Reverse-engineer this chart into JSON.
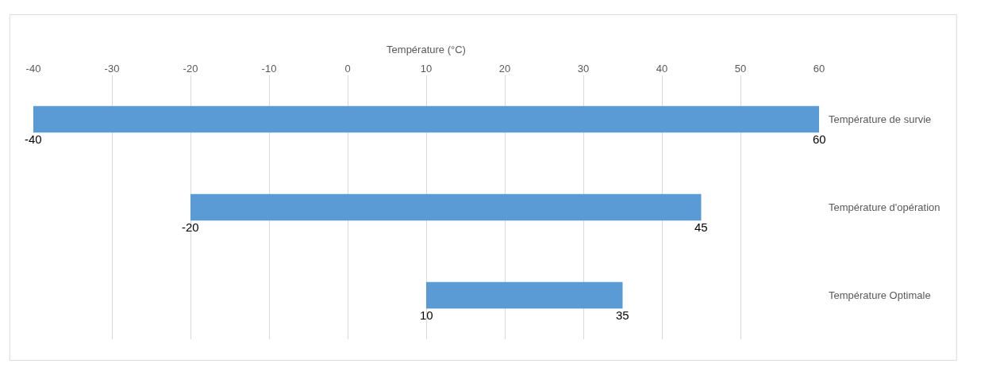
{
  "chart_data": {
    "type": "bar",
    "orientation": "horizontal",
    "xlabel": "Température (°C)",
    "categories": [
      "Température de survie",
      "Température d'opération",
      "Température Optimale"
    ],
    "base": [
      -40,
      -20,
      10
    ],
    "values": [
      100,
      65,
      25
    ],
    "color": "#5b9bd5",
    "xlim": [
      -40,
      60
    ],
    "xticks": [
      -40,
      -30,
      -20,
      -10,
      0,
      10,
      20,
      30,
      40,
      50,
      60
    ],
    "grid": "x",
    "legend": false,
    "annotations": [
      {
        "text": "-40",
        "x": -40,
        "y": "Température de survie"
      },
      {
        "text": "60",
        "x": 60,
        "y": "Température de survie"
      },
      {
        "text": "-20",
        "x": -20,
        "y": "Température d'opération"
      },
      {
        "text": "45",
        "x": 45,
        "y": "Température d'opération"
      },
      {
        "text": "10",
        "x": 10,
        "y": "Température Optimale"
      },
      {
        "text": "35",
        "x": 35,
        "y": "Température Optimale"
      }
    ]
  }
}
